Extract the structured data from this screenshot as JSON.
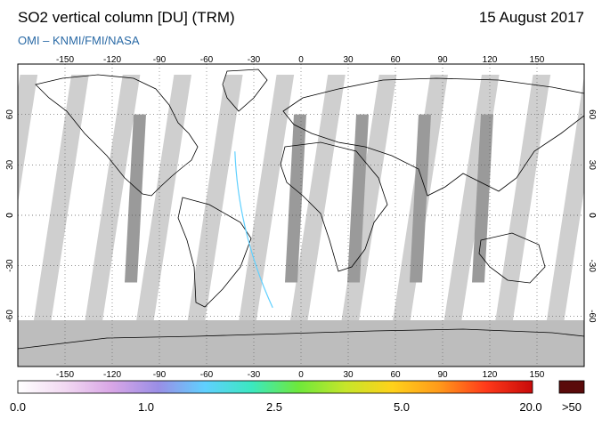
{
  "header": {
    "title": "SO2 vertical column [DU] (TRM)",
    "date": "15 August 2017",
    "subtitle": "OMI  –  KNMI/FMI/NASA"
  },
  "map": {
    "projection": "equirectangular",
    "lon_range": [
      -180,
      180
    ],
    "lat_range": [
      -90,
      90
    ],
    "lon_ticks": [
      -150,
      -120,
      -90,
      -60,
      -30,
      0,
      30,
      60,
      90,
      120,
      150
    ],
    "lat_ticks": [
      60,
      30,
      0,
      -30,
      -60
    ],
    "grid": "dotted",
    "colors": {
      "ocean_land_fill": "#ffffff",
      "no_data": "#cfcfcf",
      "swath_gap": "#9a9a9a",
      "polar_no_data": "#bdbdbd",
      "coastline": "#000000"
    }
  },
  "colorbar": {
    "labels": [
      "0.0",
      "1.0",
      "2.5",
      "5.0",
      "20.0"
    ],
    "overflow_label": ">50",
    "overflow_color": "#5a0a0a",
    "gradient_stops": [
      "#ffffff",
      "#f2d9f2",
      "#d9a6e6",
      "#9a8ee6",
      "#5fd0ff",
      "#3be8c0",
      "#6ee83b",
      "#c6e62a",
      "#ffd21a",
      "#ff9a1a",
      "#ff3a1a",
      "#c80a0a"
    ]
  }
}
